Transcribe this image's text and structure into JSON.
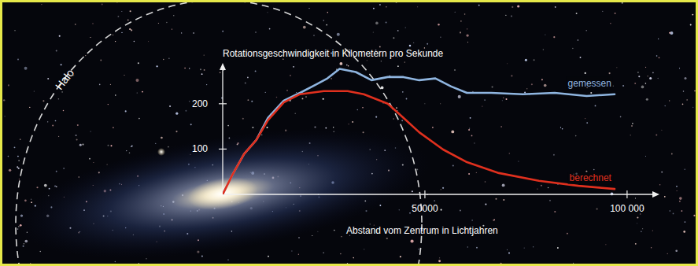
{
  "chart_data": {
    "type": "line",
    "y_label": "Rotationsgeschwindigkeit in Kilometern pro Sekunde",
    "x_label": "Abstand vom Zentrum in Lichtjahren",
    "annotations": [
      "Halo"
    ],
    "xlim": [
      0,
      108000
    ],
    "ylim": [
      0,
      290
    ],
    "xticks": [
      50000,
      {
        "value": 100000,
        "label": "100 000"
      }
    ],
    "yticks": [
      100,
      200
    ],
    "grid": false,
    "series": [
      {
        "name": "gemessen",
        "color": "#8fb5e0",
        "x": [
          0,
          2400,
          5300,
          8300,
          11200,
          15100,
          19100,
          23000,
          25900,
          28900,
          32900,
          36800,
          40800,
          44700,
          48600,
          52600,
          56500,
          60400,
          66400,
          74200,
          82100,
          90000,
          96900
        ],
        "values": [
          0,
          43,
          89,
          120,
          169,
          207,
          224,
          242,
          256,
          277,
          270,
          252,
          259,
          259,
          252,
          256,
          238,
          224,
          224,
          221,
          224,
          217,
          221
        ]
      },
      {
        "name": "berechnet",
        "color": "#e0301e",
        "x": [
          0,
          2400,
          5300,
          8300,
          11200,
          15100,
          19100,
          25000,
          30900,
          34900,
          40800,
          44700,
          48600,
          54500,
          60400,
          68300,
          78200,
          88000,
          96900
        ],
        "values": [
          0,
          43,
          89,
          120,
          164,
          203,
          221,
          228,
          228,
          221,
          200,
          169,
          137,
          99,
          71,
          47,
          30,
          19,
          12
        ]
      }
    ]
  }
}
